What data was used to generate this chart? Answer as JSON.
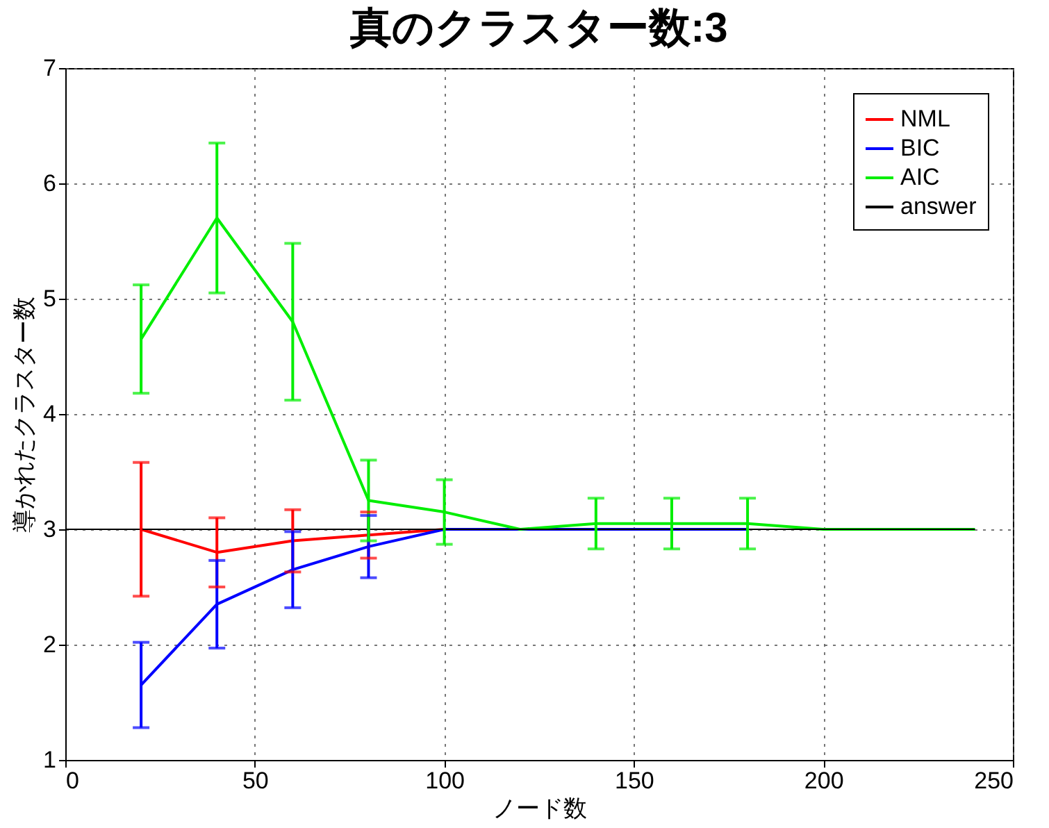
{
  "chart_data": {
    "type": "line",
    "title": "真のクラスター数:3",
    "xlabel": "ノード数",
    "ylabel": "導かれたクラスター数",
    "xlim": [
      0,
      250
    ],
    "xticks": [
      0,
      50,
      100,
      150,
      200,
      250
    ],
    "ylim": [
      1,
      7
    ],
    "yticks": [
      1,
      2,
      3,
      4,
      5,
      6,
      7
    ],
    "grid": true,
    "legend": "top right",
    "marker": "none",
    "line_style": "solid",
    "x": [
      20,
      40,
      60,
      80,
      100,
      120,
      140,
      160,
      180,
      200,
      220,
      240
    ],
    "series": [
      {
        "name": "NML",
        "color": "#ff0000",
        "values": [
          3.0,
          2.8,
          2.9,
          2.95,
          3.0,
          null,
          null,
          null,
          null,
          null,
          null,
          null
        ],
        "errors": [
          0.58,
          0.3,
          0.27,
          0.2,
          null,
          null,
          null,
          null,
          null,
          null,
          null,
          null
        ]
      },
      {
        "name": "BIC",
        "color": "#0000ff",
        "values": [
          1.65,
          2.35,
          2.65,
          2.85,
          3.0,
          3.0,
          3.0,
          3.0,
          3.0,
          null,
          null,
          null
        ],
        "errors": [
          0.37,
          0.38,
          0.33,
          0.27,
          null,
          null,
          null,
          null,
          null,
          null,
          null,
          null
        ]
      },
      {
        "name": "AIC",
        "color": "#00ee00",
        "values": [
          4.65,
          5.7,
          4.8,
          3.25,
          3.15,
          3.0,
          3.05,
          3.05,
          3.05,
          3.0,
          3.0,
          3.0
        ],
        "errors": [
          0.47,
          0.65,
          0.68,
          0.35,
          0.28,
          null,
          0.22,
          0.22,
          0.22,
          null,
          null,
          null
        ]
      },
      {
        "name": "answer",
        "color": "#000000",
        "x": [
          0,
          240
        ],
        "values": [
          3,
          3
        ]
      }
    ]
  }
}
